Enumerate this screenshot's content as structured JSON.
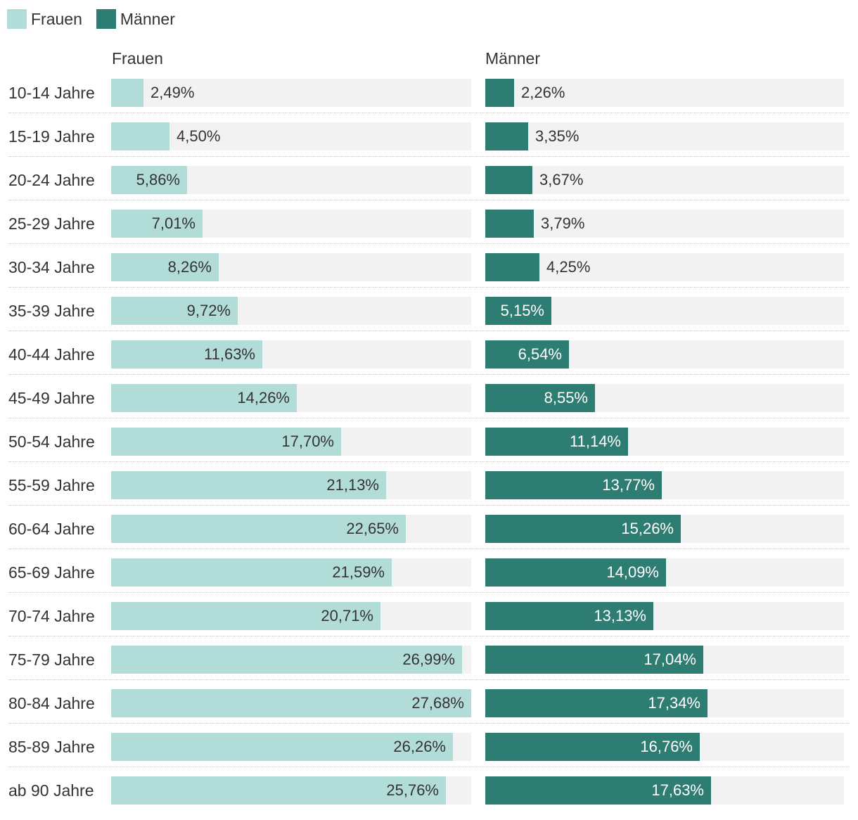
{
  "chart_data": {
    "type": "bar",
    "orientation": "horizontal",
    "legend_position": "top-left",
    "legend": [
      "Frauen",
      "Männer"
    ],
    "panel_titles": [
      "Frauen",
      "Männer"
    ],
    "categories": [
      "10-14 Jahre",
      "15-19 Jahre",
      "20-24 Jahre",
      "25-29 Jahre",
      "30-34 Jahre",
      "35-39 Jahre",
      "40-44 Jahre",
      "45-49 Jahre",
      "50-54 Jahre",
      "55-59 Jahre",
      "60-64 Jahre",
      "65-69 Jahre",
      "70-74 Jahre",
      "75-79 Jahre",
      "80-84 Jahre",
      "85-89 Jahre",
      "ab 90 Jahre"
    ],
    "series": [
      {
        "name": "Frauen",
        "color": "#b2dcd8",
        "label_color": "#333333",
        "xlim": [
          0,
          27.68
        ],
        "values": [
          2.49,
          4.5,
          5.86,
          7.01,
          8.26,
          9.72,
          11.63,
          14.26,
          17.7,
          21.13,
          22.65,
          21.59,
          20.71,
          26.99,
          27.68,
          26.26,
          25.76
        ],
        "labels": [
          "2,49%",
          "4,50%",
          "5,86%",
          "7,01%",
          "8,26%",
          "9,72%",
          "11,63%",
          "14,26%",
          "17,70%",
          "21,13%",
          "22,65%",
          "21,59%",
          "20,71%",
          "26,99%",
          "27,68%",
          "26,26%",
          "25,76%"
        ]
      },
      {
        "name": "Männer",
        "color": "#2e7d73",
        "label_color": "#ffffff",
        "xlim": [
          0,
          28.0
        ],
        "values": [
          2.26,
          3.35,
          3.67,
          3.79,
          4.25,
          5.15,
          6.54,
          8.55,
          11.14,
          13.77,
          15.26,
          14.09,
          13.13,
          17.04,
          17.34,
          16.76,
          17.63
        ],
        "labels": [
          "2,26%",
          "3,35%",
          "3,67%",
          "3,79%",
          "4,25%",
          "5,15%",
          "6,54%",
          "8,55%",
          "11,14%",
          "13,77%",
          "15,26%",
          "14,09%",
          "13,13%",
          "17,04%",
          "17,34%",
          "16,76%",
          "17,63%"
        ]
      }
    ]
  }
}
